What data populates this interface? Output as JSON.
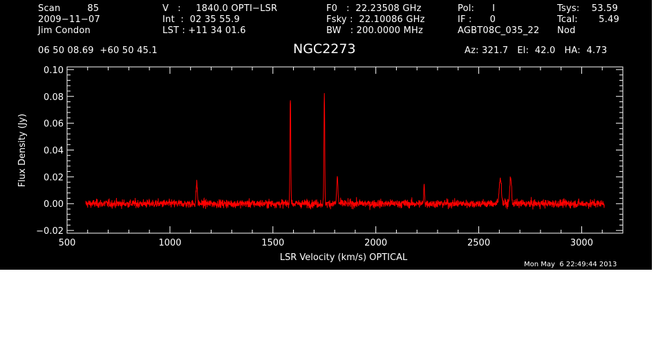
{
  "header": {
    "row1": [
      {
        "key": "scan",
        "text": "Scan         85"
      },
      {
        "key": "vel",
        "text": "V   :     1840.0 OPTI−LSR"
      },
      {
        "key": "f0",
        "text": "F0   :  22.23508 GHz"
      },
      {
        "key": "pol",
        "text": "Pol:      I"
      },
      {
        "key": "tsys",
        "text": "Tsys:    53.59"
      }
    ],
    "row2": [
      {
        "key": "date",
        "text": "2009−11−07"
      },
      {
        "key": "int",
        "text": "Int  :  02 35 55.9"
      },
      {
        "key": "fsky",
        "text": "Fsky :  22.10086 GHz"
      },
      {
        "key": "if",
        "text": "IF :      0"
      },
      {
        "key": "tcal",
        "text": "Tcal:       5.49"
      }
    ],
    "row3": [
      {
        "key": "observer",
        "text": "Jim Condon"
      },
      {
        "key": "lst",
        "text": "LST : +11 34 01.6"
      },
      {
        "key": "bw",
        "text": "BW   : 200.0000 MHz"
      },
      {
        "key": "project",
        "text": "AGBT08C_035_22"
      },
      {
        "key": "proc",
        "text": "Nod"
      }
    ],
    "coords": "06 50 08.69  +60 50 45.1",
    "source": "NGC2273",
    "azelha": "Az: 321.7   El:  42.0   HA:  4.73",
    "timestamp": "Mon May  6 22:49:44 2013"
  },
  "chart_data": {
    "type": "line",
    "xlabel": "LSR Velocity (km/s) OPTICAL",
    "ylabel": "Flux Density (Jy)",
    "xlim": [
      500,
      3200
    ],
    "ylim": [
      -0.022,
      0.102
    ],
    "x_ticks": [
      500,
      1000,
      1500,
      2000,
      2500,
      3000
    ],
    "y_ticks": [
      -0.02,
      0.0,
      0.02,
      0.04,
      0.06,
      0.08,
      0.1
    ],
    "x_tick_labels": [
      "500",
      "1000",
      "1500",
      "2000",
      "2500",
      "3000"
    ],
    "y_tick_labels": [
      "−0.02",
      "0.00",
      "0.02",
      "0.04",
      "0.06",
      "0.08",
      "0.10"
    ],
    "grid": false,
    "colors": {
      "line": "#ff0000",
      "axes": "#ffffff",
      "background": "#000000"
    },
    "series": [
      {
        "x_range": [
          590,
          3110
        ],
        "baseline": 0.0,
        "noise_rms": 0.0022,
        "features": [
          {
            "x": 1130,
            "peak": 0.016,
            "width": 3
          },
          {
            "x": 1585,
            "peak": 0.082,
            "width": 2
          },
          {
            "x": 1750,
            "peak": 0.083,
            "width": 2
          },
          {
            "x": 1813,
            "peak": 0.02,
            "width": 3
          },
          {
            "x": 2235,
            "peak": 0.015,
            "width": 2
          },
          {
            "x": 2605,
            "peak": 0.02,
            "width": 5
          },
          {
            "x": 2655,
            "peak": 0.02,
            "width": 4
          }
        ]
      }
    ]
  }
}
